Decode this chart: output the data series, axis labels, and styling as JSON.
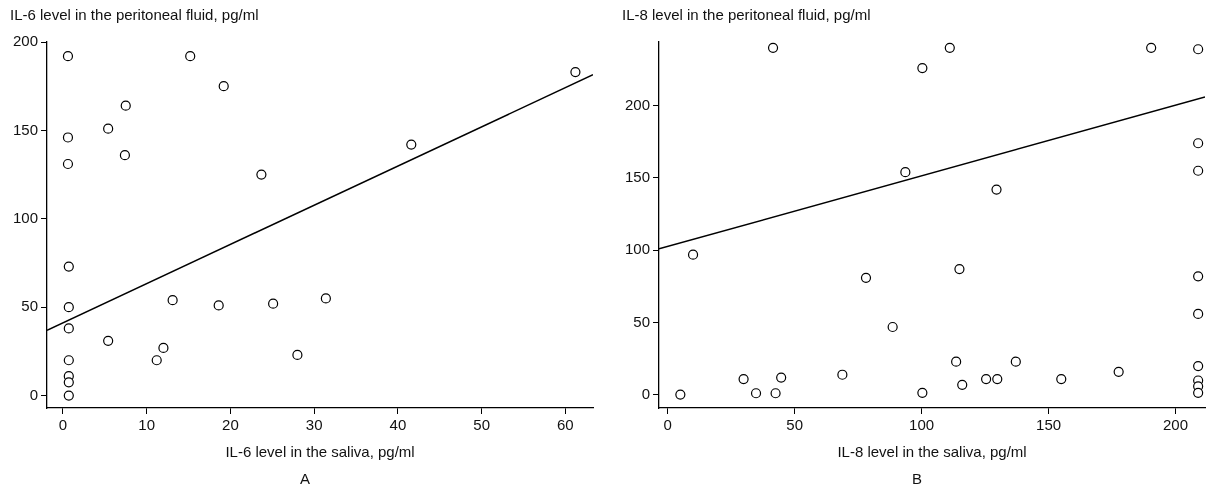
{
  "chart_data": [
    {
      "type": "scatter",
      "ylabel": "IL-6 level in the peritoneal fluid, pg/ml",
      "xlabel": "IL-6 level in the saliva, pg/ml",
      "annotations": [
        "A"
      ],
      "xlim": [
        -1.9,
        63.3
      ],
      "ylim": [
        -7,
        200
      ],
      "xticks": [
        0,
        10,
        20,
        30,
        40,
        50,
        60
      ],
      "yticks": [
        0,
        50,
        100,
        150,
        200
      ],
      "grid": false,
      "series": [
        {
          "type": "scatter",
          "marker": "circle",
          "color": "#000000",
          "x": [
            0.6,
            0.6,
            0.6,
            0.7,
            0.7,
            0.7,
            0.7,
            0.7,
            0.7,
            0.7,
            5.4,
            5.4,
            7.5,
            7.4,
            11.2,
            12,
            13.1,
            15.2,
            18.6,
            19.2,
            23.7,
            25.1,
            28,
            31.4,
            41.6,
            61.2
          ],
          "values": [
            192,
            146,
            131,
            73,
            50,
            38,
            20,
            11,
            7.5,
            0,
            151,
            31,
            164,
            136,
            20,
            27,
            54,
            192,
            51,
            175,
            125,
            52,
            23,
            55,
            142,
            183
          ]
        },
        {
          "type": "line",
          "color": "#000000",
          "x": [
            -1.9,
            63.3
          ],
          "values": [
            37,
            181.5
          ]
        }
      ]
    },
    {
      "type": "scatter",
      "ylabel": "IL-8 level in the peritoneal fluid, pg/ml",
      "xlabel": "IL-8 level in the saliva, pg/ml",
      "annotations": [
        "B"
      ],
      "xlim": [
        -3.4,
        211.6
      ],
      "ylim": [
        -9,
        244
      ],
      "xticks": [
        0,
        50,
        100,
        150,
        200
      ],
      "yticks": [
        0,
        50,
        100,
        150,
        200
      ],
      "grid": false,
      "series": [
        {
          "type": "scatter",
          "marker": "circle",
          "color": "#000000",
          "x": [
            5,
            10,
            29.9,
            34.8,
            41.5,
            42.5,
            44.7,
            68.8,
            78.1,
            88.6,
            93.6,
            100.3,
            100.3,
            111.1,
            113.6,
            114.9,
            116,
            125.4,
            129.8,
            129.5,
            137.1,
            155,
            177.6,
            190.4,
            208.9,
            208.9,
            208.9,
            208.9,
            208.9,
            208.9,
            208.9,
            208.9,
            208.9
          ],
          "values": [
            0.3,
            97,
            11,
            1.2,
            240,
            1.2,
            12,
            14,
            81,
            47,
            154,
            226,
            1.5,
            240,
            23,
            87,
            7,
            11,
            11,
            142,
            23,
            11,
            16,
            240,
            239,
            174,
            155,
            82,
            56,
            20,
            10,
            6,
            1.5
          ]
        },
        {
          "type": "line",
          "color": "#000000",
          "x": [
            -3.4,
            211.6
          ],
          "values": [
            101,
            206
          ]
        }
      ]
    }
  ]
}
